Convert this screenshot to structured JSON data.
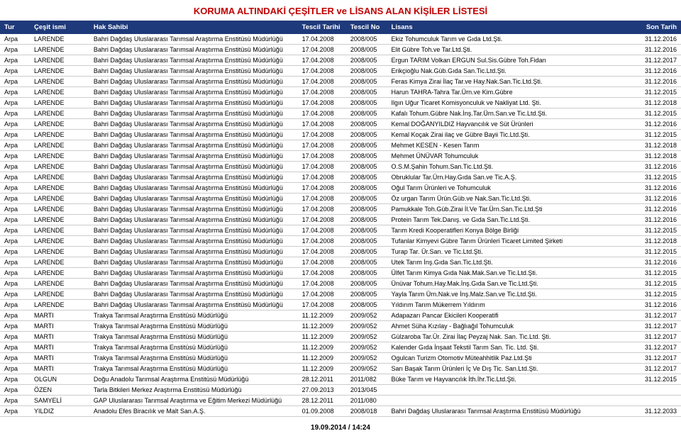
{
  "title": "KORUMA ALTINDAKİ ÇEŞİTLER ve LİSANS ALAN KİŞİLER LİSTESİ",
  "footer": "19.09.2014 / 14:24",
  "columns": {
    "tur": "Tur",
    "cesit": "Çeşit ismi",
    "hak": "Hak Sahibi",
    "tarih": "Tescil Tarihi",
    "no": "Tescil No",
    "lisans": "Lisans",
    "son": "Son Tarih"
  },
  "rows": [
    {
      "tur": "Arpa",
      "cesit": "LARENDE",
      "hak": "Bahri Dağdaş Uluslararası Tarımsal Araştırma Enstitüsü Müdürlüğü",
      "tarih": "17.04.2008",
      "no": "2008/005",
      "lisans": "Ekiz Tohumculuk Tarım ve Gıda Ltd.Şti.",
      "son": "31.12.2016"
    },
    {
      "tur": "Arpa",
      "cesit": "LARENDE",
      "hak": "Bahri Dağdaş Uluslararası Tarımsal Araştırma Enstitüsü Müdürlüğü",
      "tarih": "17.04.2008",
      "no": "2008/005",
      "lisans": "Elit Gübre Toh.ve Tar.Ltd.Şti.",
      "son": "31.12.2016"
    },
    {
      "tur": "Arpa",
      "cesit": "LARENDE",
      "hak": "Bahri Dağdaş Uluslararası Tarımsal Araştırma Enstitüsü Müdürlüğü",
      "tarih": "17.04.2008",
      "no": "2008/005",
      "lisans": "Ergun TARIM  Volkan ERGUN Sul.Sis.Gübre Toh.Fidan",
      "son": "31.12.2017"
    },
    {
      "tur": "Arpa",
      "cesit": "LARENDE",
      "hak": "Bahri Dağdaş Uluslararası Tarımsal Araştırma Enstitüsü Müdürlüğü",
      "tarih": "17.04.2008",
      "no": "2008/005",
      "lisans": "Erikçioğlu Nak.Güb.Gıda San.Tic.Ltd.Şti.",
      "son": "31.12.2016"
    },
    {
      "tur": "Arpa",
      "cesit": "LARENDE",
      "hak": "Bahri Dağdaş Uluslararası Tarımsal Araştırma Enstitüsü Müdürlüğü",
      "tarih": "17.04.2008",
      "no": "2008/005",
      "lisans": "Feras Kimya Zirai İlaç Tar.ve Hay.Nak.San.Tic.Ltd.Şti.",
      "son": "31.12.2016"
    },
    {
      "tur": "Arpa",
      "cesit": "LARENDE",
      "hak": "Bahri Dağdaş Uluslararası Tarımsal Araştırma Enstitüsü Müdürlüğü",
      "tarih": "17.04.2008",
      "no": "2008/005",
      "lisans": "Harun TAHRA-Tahra Tar.Ürn.ve Kim.Gübre",
      "son": "31.12.2015"
    },
    {
      "tur": "Arpa",
      "cesit": "LARENDE",
      "hak": "Bahri Dağdaş Uluslararası Tarımsal Araştırma Enstitüsü Müdürlüğü",
      "tarih": "17.04.2008",
      "no": "2008/005",
      "lisans": "Ilgın Uğur Ticaret Komisyonculuk ve Nakliyat Ltd. Şti.",
      "son": "31.12.2018"
    },
    {
      "tur": "Arpa",
      "cesit": "LARENDE",
      "hak": "Bahri Dağdaş Uluslararası Tarımsal Araştırma Enstitüsü Müdürlüğü",
      "tarih": "17.04.2008",
      "no": "2008/005",
      "lisans": "Kafalı Tohum.Gübre Nak.İnş.Tar.Ürn.San.ve Tic.Ltd.Şti.",
      "son": "31.12.2015"
    },
    {
      "tur": "Arpa",
      "cesit": "LARENDE",
      "hak": "Bahri Dağdaş Uluslararası Tarımsal Araştırma Enstitüsü Müdürlüğü",
      "tarih": "17.04.2008",
      "no": "2008/005",
      "lisans": "Kemal DOĞANYILDIZ Hayvancılık ve Süt Ürünleri",
      "son": "31.12.2016"
    },
    {
      "tur": "Arpa",
      "cesit": "LARENDE",
      "hak": "Bahri Dağdaş Uluslararası Tarımsal Araştırma Enstitüsü Müdürlüğü",
      "tarih": "17.04.2008",
      "no": "2008/005",
      "lisans": "Kemal Koçak Zirai ilaç ve Gübre Bayii Tic.Ltd.Şti.",
      "son": "31.12.2015"
    },
    {
      "tur": "Arpa",
      "cesit": "LARENDE",
      "hak": "Bahri Dağdaş Uluslararası Tarımsal Araştırma Enstitüsü Müdürlüğü",
      "tarih": "17.04.2008",
      "no": "2008/005",
      "lisans": "Mehmet KESEN - Kesen Tarım",
      "son": "31.12.2018"
    },
    {
      "tur": "Arpa",
      "cesit": "LARENDE",
      "hak": "Bahri Dağdaş Uluslararası Tarımsal Araştırma Enstitüsü Müdürlüğü",
      "tarih": "17.04.2008",
      "no": "2008/005",
      "lisans": "Mehmet ÜNÜVAR Tohumculuk",
      "son": "31.12.2018"
    },
    {
      "tur": "Arpa",
      "cesit": "LARENDE",
      "hak": "Bahri Dağdaş Uluslararası Tarımsal Araştırma Enstitüsü Müdürlüğü",
      "tarih": "17.04.2008",
      "no": "2008/005",
      "lisans": "O.S.M.Şahin Tohum.San.Tic.Ltd.Şti.",
      "son": "31.12.2016"
    },
    {
      "tur": "Arpa",
      "cesit": "LARENDE",
      "hak": "Bahri Dağdaş Uluslararası Tarımsal Araştırma Enstitüsü Müdürlüğü",
      "tarih": "17.04.2008",
      "no": "2008/005",
      "lisans": "Obruklular Tar.Ürn.Hay.Gıda San.ve Tic.A.Ş.",
      "son": "31.12.2015"
    },
    {
      "tur": "Arpa",
      "cesit": "LARENDE",
      "hak": "Bahri Dağdaş Uluslararası Tarımsal Araştırma Enstitüsü Müdürlüğü",
      "tarih": "17.04.2008",
      "no": "2008/005",
      "lisans": "Oğul Tarım Ürünleri ve Tohumculuk",
      "son": "31.12.2016"
    },
    {
      "tur": "Arpa",
      "cesit": "LARENDE",
      "hak": "Bahri Dağdaş Uluslararası Tarımsal Araştırma Enstitüsü Müdürlüğü",
      "tarih": "17.04.2008",
      "no": "2008/005",
      "lisans": "Öz urgan Tarım Ürün.Güb.ve Nak.San.Tic.Ltd.Şti.",
      "son": "31.12.2016"
    },
    {
      "tur": "Arpa",
      "cesit": "LARENDE",
      "hak": "Bahri Dağdaş Uluslararası Tarımsal Araştırma Enstitüsü Müdürlüğü",
      "tarih": "17.04.2008",
      "no": "2008/005",
      "lisans": "Pamukkale Toh.Güb.Zirai İl.Ve Tar.Ürn.San.Tic.Ltd.Şti",
      "son": "31.12.2016"
    },
    {
      "tur": "Arpa",
      "cesit": "LARENDE",
      "hak": "Bahri Dağdaş Uluslararası Tarımsal Araştırma Enstitüsü Müdürlüğü",
      "tarih": "17.04.2008",
      "no": "2008/005",
      "lisans": "Protein Tarım Tek.Danış. ve Gıda San.Tic.Ltd.Şti.",
      "son": "31.12.2016"
    },
    {
      "tur": "Arpa",
      "cesit": "LARENDE",
      "hak": "Bahri Dağdaş Uluslararası Tarımsal Araştırma Enstitüsü Müdürlüğü",
      "tarih": "17.04.2008",
      "no": "2008/005",
      "lisans": "Tarım Kredi Kooperatifleri Konya Bölge Birliği",
      "son": "31.12.2015"
    },
    {
      "tur": "Arpa",
      "cesit": "LARENDE",
      "hak": "Bahri Dağdaş Uluslararası Tarımsal Araştırma Enstitüsü Müdürlüğü",
      "tarih": "17.04.2008",
      "no": "2008/005",
      "lisans": "Tufanlar Kimyevi Gübre Tarım Ürünleri Ticaret Limited Şirketi",
      "son": "31.12.2018"
    },
    {
      "tur": "Arpa",
      "cesit": "LARENDE",
      "hak": "Bahri Dağdaş Uluslararası Tarımsal Araştırma Enstitüsü Müdürlüğü",
      "tarih": "17.04.2008",
      "no": "2008/005",
      "lisans": "Turap Tar. Ür.San. ve Tic.Ltd.Şti.",
      "son": "31.12.2015"
    },
    {
      "tur": "Arpa",
      "cesit": "LARENDE",
      "hak": "Bahri Dağdaş Uluslararası Tarımsal Araştırma Enstitüsü Müdürlüğü",
      "tarih": "17.04.2008",
      "no": "2008/005",
      "lisans": "Utek  Tarım İnş.Gıda San.Tic.Ltd.Şti.",
      "son": "31.12.2016"
    },
    {
      "tur": "Arpa",
      "cesit": "LARENDE",
      "hak": "Bahri Dağdaş Uluslararası Tarımsal Araştırma Enstitüsü Müdürlüğü",
      "tarih": "17.04.2008",
      "no": "2008/005",
      "lisans": "Ülfet Tarım Kimya Gıda Nak.Mak.San.ve Tic.Ltd.Şti.",
      "son": "31.12.2015"
    },
    {
      "tur": "Arpa",
      "cesit": "LARENDE",
      "hak": "Bahri Dağdaş Uluslararası Tarımsal Araştırma Enstitüsü Müdürlüğü",
      "tarih": "17.04.2008",
      "no": "2008/005",
      "lisans": "Ünüvar Tohum.Hay.Mak.İnş.Gıda San.ve Tic.Ltd.Şti.",
      "son": "31.12.2015"
    },
    {
      "tur": "Arpa",
      "cesit": "LARENDE",
      "hak": "Bahri Dağdaş Uluslararası Tarımsal Araştırma Enstitüsü Müdürlüğü",
      "tarih": "17.04.2008",
      "no": "2008/005",
      "lisans": "Yayla Tarım Ürn.Nak.ve İnş.Malz.San.ve Tic.Ltd.Şti.",
      "son": "31.12.2015"
    },
    {
      "tur": "Arpa",
      "cesit": "LARENDE",
      "hak": "Bahri Dağdaş Uluslararası Tarımsal Araştırma Enstitüsü Müdürlüğü",
      "tarih": "17.04.2008",
      "no": "2008/005",
      "lisans": "Yıldırım Tarım Mükerrem Yıldırım",
      "son": "31.12.2016"
    },
    {
      "tur": "Arpa",
      "cesit": "MARTI",
      "hak": "Trakya Tarımsal Araştırma Enstitüsü Müdürlüğü",
      "tarih": "11.12.2009",
      "no": "2009/052",
      "lisans": "Adapazarı Pancar Ekicileri Kooperatifi",
      "son": "31.12.2017"
    },
    {
      "tur": "Arpa",
      "cesit": "MARTI",
      "hak": "Trakya Tarımsal Araştırma Enstitüsü Müdürlüğü",
      "tarih": "11.12.2009",
      "no": "2009/052",
      "lisans": "Ahmet Süha Kızılay - Bağlıağıl Tohumculuk",
      "son": "31.12.2017"
    },
    {
      "tur": "Arpa",
      "cesit": "MARTI",
      "hak": "Trakya Tarımsal Araştırma Enstitüsü Müdürlüğü",
      "tarih": "11.12.2009",
      "no": "2009/052",
      "lisans": "Gülzaroba Tar.Ür. Zirai İlaç Peyzaj Nak. San. Tic.Ltd. Şti.",
      "son": "31.12.2017"
    },
    {
      "tur": "Arpa",
      "cesit": "MARTI",
      "hak": "Trakya Tarımsal Araştırma Enstitüsü Müdürlüğü",
      "tarih": "11.12.2009",
      "no": "2009/052",
      "lisans": "Kalender Gıda İnşaat Tekstil Tarım San. Tic. Ltd. Şti.",
      "son": "31.12.2017"
    },
    {
      "tur": "Arpa",
      "cesit": "MARTI",
      "hak": "Trakya Tarımsal Araştırma Enstitüsü Müdürlüğü",
      "tarih": "11.12.2009",
      "no": "2009/052",
      "lisans": "Ogulcan Turizm Otomotiv Müteahhitlik Paz.Ltd.Şti",
      "son": "31.12.2017"
    },
    {
      "tur": "Arpa",
      "cesit": "MARTI",
      "hak": "Trakya Tarımsal Araştırma Enstitüsü Müdürlüğü",
      "tarih": "11.12.2009",
      "no": "2009/052",
      "lisans": "Sarı Başak Tarım Ürünleri İç Ve Dış Tic. San.Ltd.Şti.",
      "son": "31.12.2017"
    },
    {
      "tur": "Arpa",
      "cesit": "OLGUN",
      "hak": "Doğu Anadolu Tarımsal Araştırma Enstitüsü Müdürlüğü",
      "tarih": "28.12.2011",
      "no": "2011/082",
      "lisans": "Büke Tarım ve Hayvancılık İth.İhr.Tic.Ltd.Şti.",
      "son": "31.12.2015"
    },
    {
      "tur": "Arpa",
      "cesit": "ÖZEN",
      "hak": "Tarla Bitkileri Merkez Araştırma Enstitüsü Müdürlüğü",
      "tarih": "27.09.2013",
      "no": "2013/045",
      "lisans": "",
      "son": ""
    },
    {
      "tur": "Arpa",
      "cesit": "SAMYELİ",
      "hak": "GAP Uluslararası Tarımsal Araştırma ve Eğitim Merkezi Müdürlüğü",
      "tarih": "28.12.2011",
      "no": "2011/080",
      "lisans": "",
      "son": ""
    },
    {
      "tur": "Arpa",
      "cesit": "YILDIZ",
      "hak": "Anadolu Efes Biracılık ve Malt San.A.Ş.",
      "tarih": "01.09.2008",
      "no": "2008/018",
      "lisans": "Bahri Dağdaş Uluslararası Tarımsal Araştırma Enstitüsü Müdürlüğü",
      "son": "31.12.2033"
    }
  ]
}
